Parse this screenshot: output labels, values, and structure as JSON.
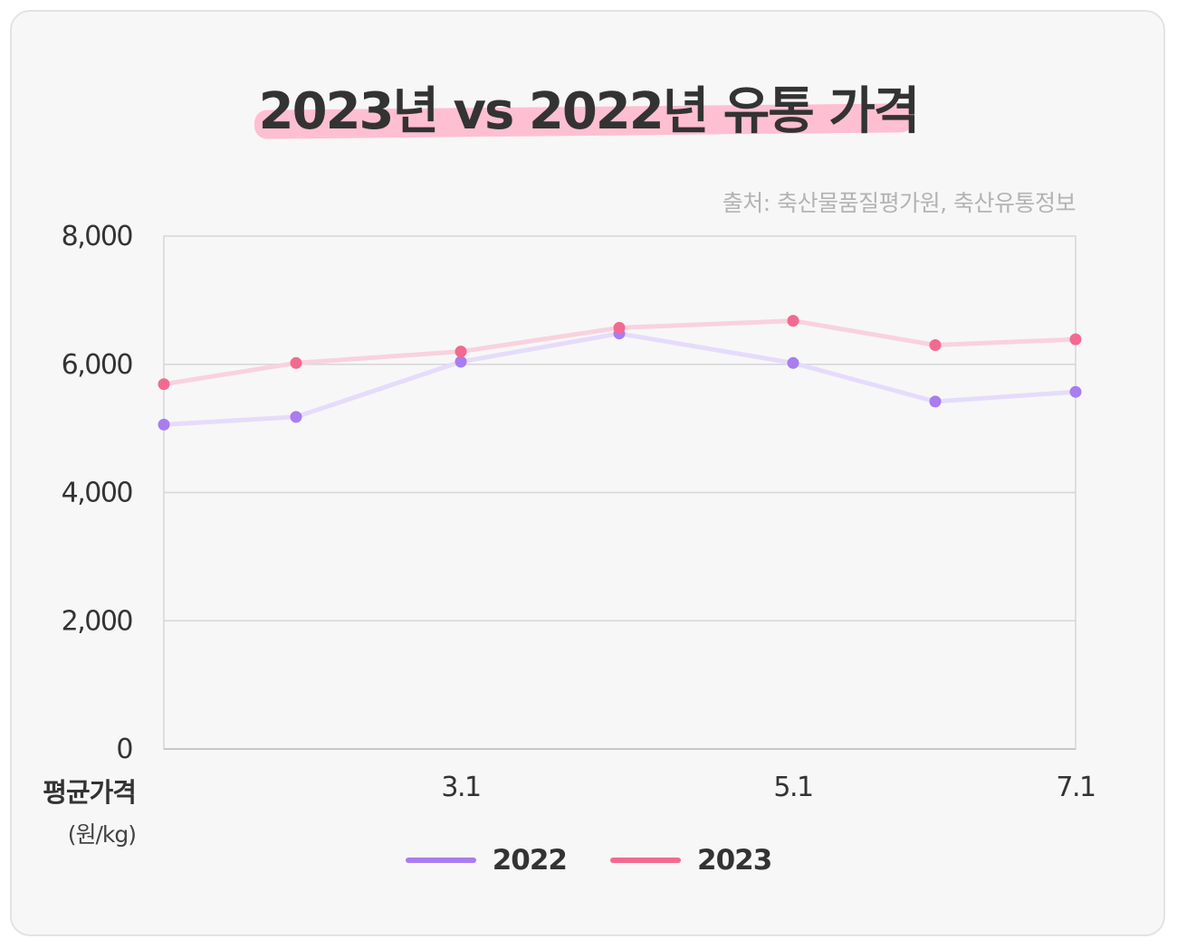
{
  "title": "2023년 vs 2022년 유통 가격",
  "source": "출처: 축산물품질평가원, 축산유통정보",
  "y_axis": {
    "label": "평균가격",
    "unit": "(원/kg)"
  },
  "chart_data": {
    "type": "line",
    "x": [
      1,
      2,
      3,
      4,
      5,
      6,
      7
    ],
    "x_tick_labels": [
      "3.1",
      "5.1",
      "7.1"
    ],
    "y_tick_labels": [
      "8,000",
      "6,000",
      "4,000",
      "2,000",
      "0"
    ],
    "ylim": [
      0,
      8000
    ],
    "grid": true,
    "legend_position": "bottom",
    "series": [
      {
        "name": "2022",
        "color": "#a97cf0",
        "line_color": "#e5dcfb",
        "values": [
          5060,
          5180,
          6040,
          6480,
          6020,
          5420,
          5570
        ]
      },
      {
        "name": "2023",
        "color": "#f36a91",
        "line_color": "#f9d2de",
        "values": [
          5690,
          6020,
          6200,
          6570,
          6680,
          6300,
          6390
        ]
      }
    ]
  }
}
